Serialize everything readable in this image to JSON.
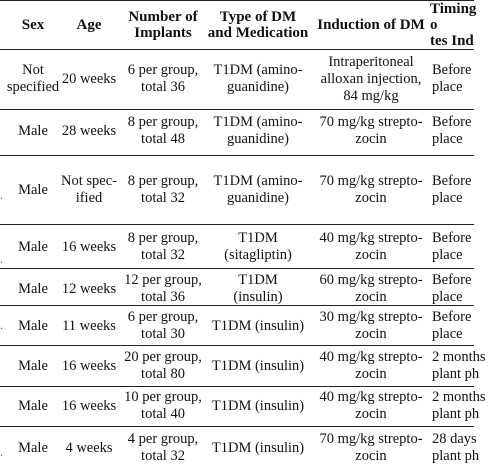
{
  "table": {
    "headers": [
      "Sex",
      "Age",
      "Number of\nImplants",
      "Type of DM\nand Medication",
      "Induction of DM",
      "Timing o\ntes Ind"
    ],
    "rows": [
      [
        "Not\nspecified",
        "20 weeks",
        "6 per group,\ntotal 36",
        "T1DM (amino-\nguanidine)",
        "Intraperitoneal\nalloxan injection,\n84 mg/kg",
        "Before\nplace"
      ],
      [
        "Male",
        "28 weeks",
        "8 per group,\ntotal 48",
        "T1DM (amino-\nguanidine)",
        "70 mg/kg strepto-\nzocin",
        "Before\nplace"
      ],
      [
        "Male",
        "Not spec-\nified",
        "8 per group,\ntotal 32",
        "T1DM (amino-\nguanidine)",
        "70 mg/kg strepto-\nzocin",
        "Before\nplace"
      ],
      [
        "Male",
        "16 weeks",
        "8 per group,\ntotal 32",
        "T1DM\n(sitagliptin)",
        "40 mg/kg strepto-\nzocin",
        "Before\nplace"
      ],
      [
        "Male",
        "12 weeks",
        "12 per group,\ntotal 36",
        "T1DM\n(insulin)",
        "60 mg/kg strepto-\nzocin",
        "Before\nplace"
      ],
      [
        "Male",
        "11 weeks",
        "6 per group,\ntotal 30",
        "T1DM (insulin)",
        "30 mg/kg strepto-\nzocin",
        "Before\nplace"
      ],
      [
        "Male",
        "16 weeks",
        "20 per group,\ntotal 80",
        "T1DM (insulin)",
        "40 mg/kg strepto-\nzocin",
        "2 months\nplant ph"
      ],
      [
        "Male",
        "16 weeks",
        "10 per group,\ntotal 40",
        "T1DM (insulin)",
        "40 mg/kg strepto-\nzocin",
        "2 months\nplant ph"
      ],
      [
        "Male",
        "4 weeks",
        "4 per group,\ntotal 32",
        "T1DM (insulin)",
        "70 mg/kg strepto-\nzocin",
        "28 days\nplant ph"
      ]
    ]
  }
}
